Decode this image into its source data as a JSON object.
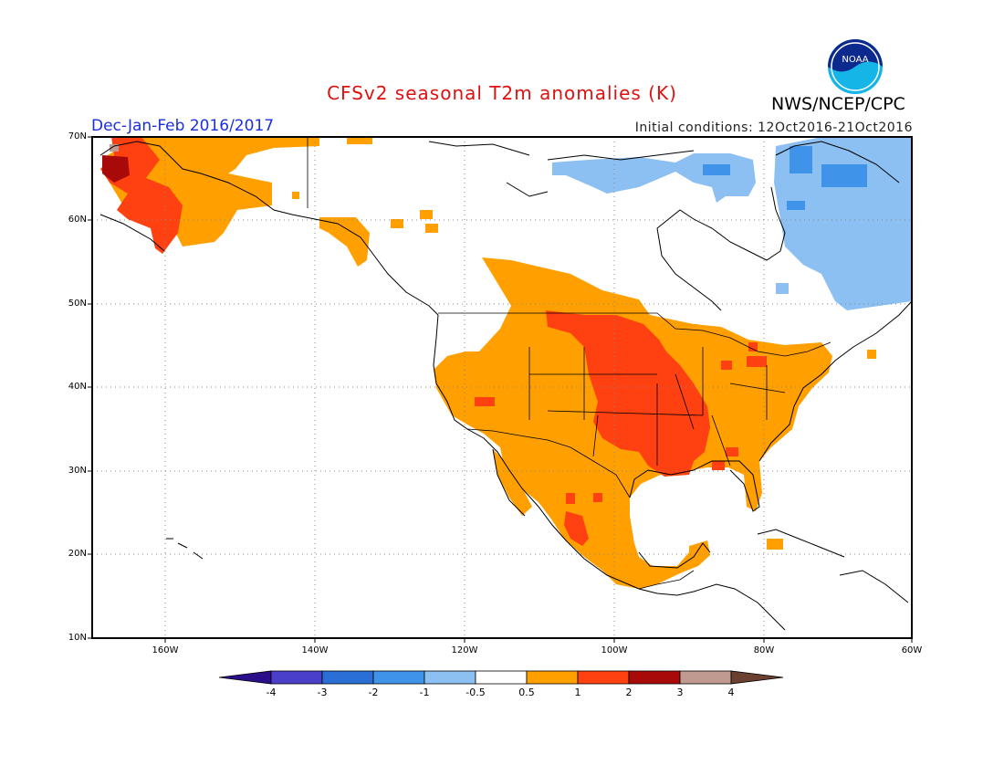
{
  "title": "CFSv2 seasonal T2m anomalies (K)",
  "period": "Dec-Jan-Feb 2016/2017",
  "initial_conditions": "Initial conditions: 12Oct2016-21Oct2016",
  "agency": "NWS/NCEP/CPC",
  "logo_text": "NOAA",
  "lat_labels": [
    "70N",
    "60N",
    "50N",
    "40N",
    "30N",
    "20N",
    "10N"
  ],
  "lon_labels": [
    "160W",
    "140W",
    "120W",
    "100W",
    "80W",
    "60W"
  ],
  "colorbar": {
    "labels": [
      "-4",
      "-3",
      "-2",
      "-1",
      "-0.5",
      "0.5",
      "1",
      "2",
      "3",
      "4"
    ],
    "colors": [
      "#2b0f8a",
      "#4a3fc8",
      "#2a6fd6",
      "#3f93e8",
      "#8cc0f2",
      "#ffffff",
      "#ffa000",
      "#ff4010",
      "#a80a0a",
      "#c09a90",
      "#6b4030"
    ]
  },
  "colors": {
    "ocean_bg": "#ffffff",
    "pos_half": "#ffa000",
    "pos_one": "#ff4010",
    "pos_two": "#a80a0a",
    "pos_three": "#c09a90",
    "neg_half": "#8cc0f2",
    "neg_one": "#3f93e8",
    "title": "#e01010",
    "period": "#1a2fe0"
  }
}
